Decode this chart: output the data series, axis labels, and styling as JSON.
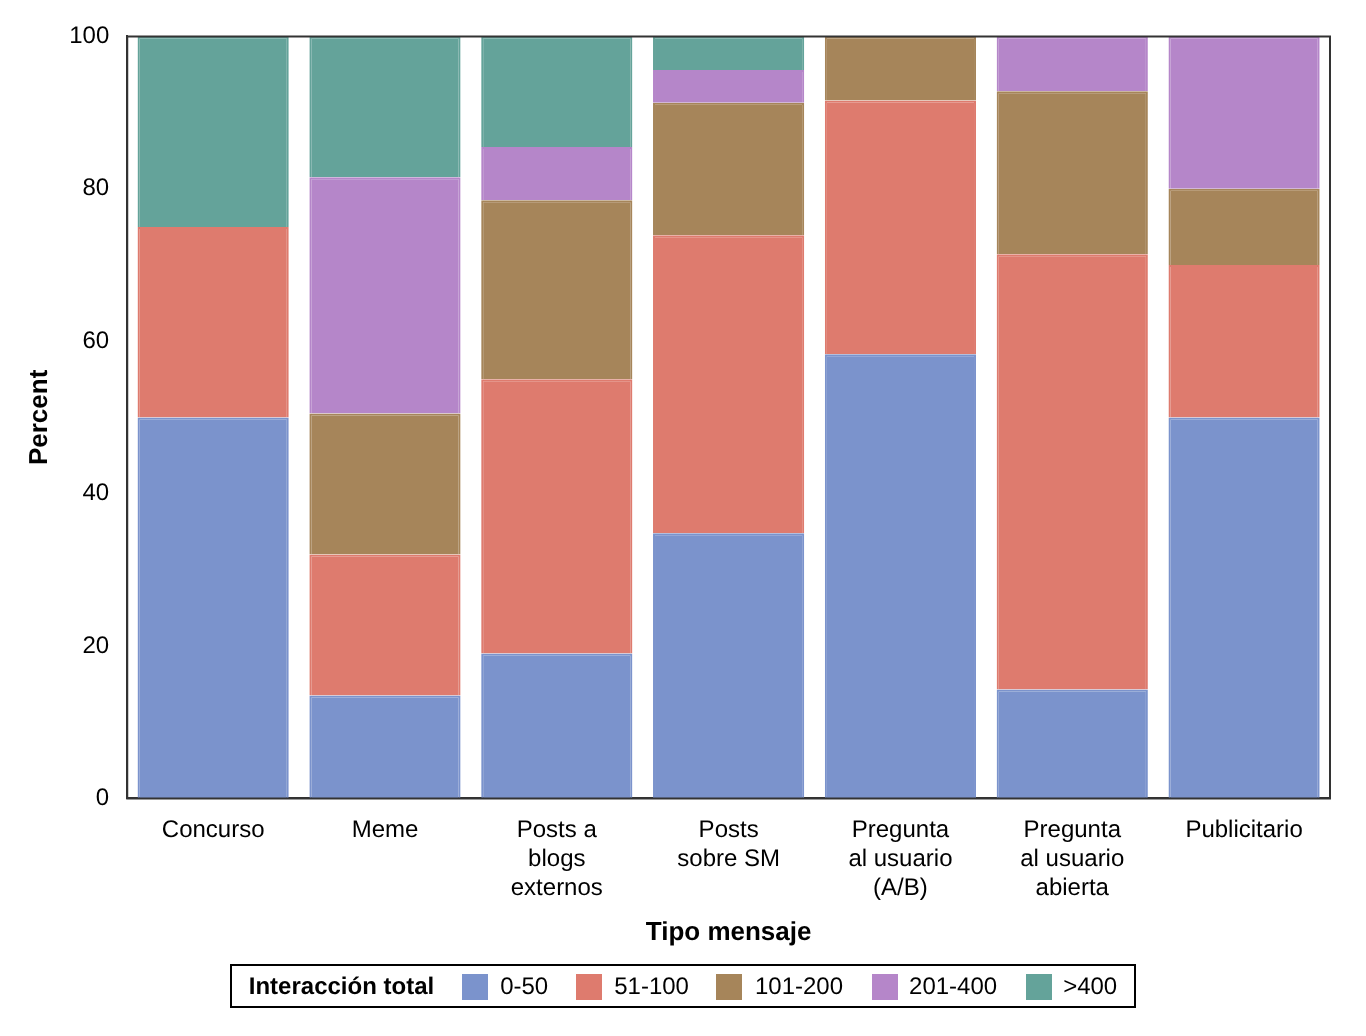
{
  "chart_data": {
    "type": "bar",
    "stacked": true,
    "xlabel": "Tipo mensaje",
    "ylabel": "Percent",
    "legend_title": "Interacción total",
    "legend": "bottom",
    "grid": false,
    "categories": [
      "Concurso",
      "Meme",
      "Posts a blogs externos",
      "Posts sobre SM",
      "Pregunta al usuario (A/B)",
      "Pregunta al usuario abierta",
      "Publicitario"
    ],
    "ylim": [
      0,
      100
    ],
    "yticks": [
      0,
      20,
      40,
      60,
      80,
      100
    ],
    "series": [
      {
        "name": "0-50",
        "color": "#7b93cc",
        "values": [
          50,
          13.5,
          19,
          34.8,
          58.3,
          14.3,
          50
        ]
      },
      {
        "name": "51-100",
        "color": "#de7b6e",
        "values": [
          25,
          18.5,
          36,
          39.1,
          33.3,
          57.1,
          20
        ]
      },
      {
        "name": "101-200",
        "color": "#a6855a",
        "values": [
          0,
          18.5,
          23.5,
          17.4,
          8.4,
          21.4,
          10
        ]
      },
      {
        "name": "201-400",
        "color": "#b586c9",
        "values": [
          0,
          31,
          7,
          4.3,
          0,
          7.2,
          20
        ]
      },
      {
        "name": ">400",
        "color": "#64a39a",
        "values": [
          25,
          18.5,
          14.5,
          4.4,
          0,
          0,
          0
        ]
      }
    ]
  }
}
